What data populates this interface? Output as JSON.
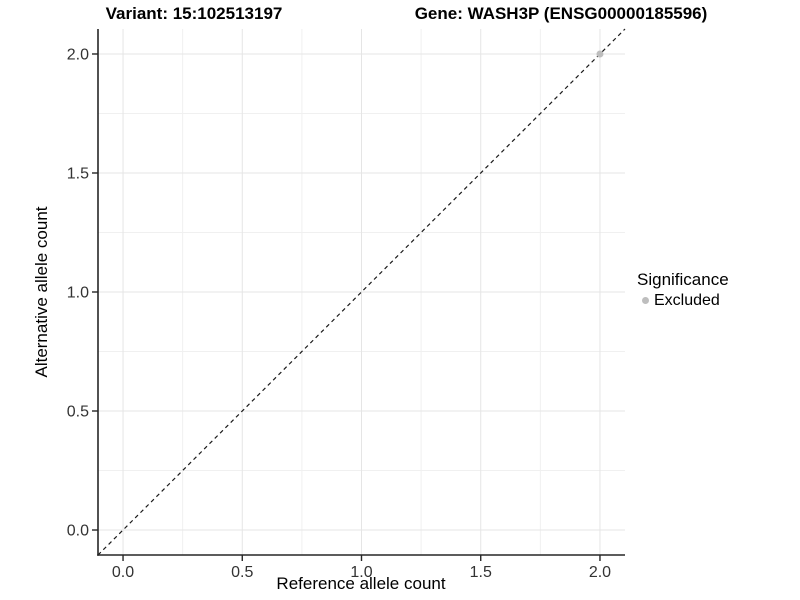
{
  "header": {
    "title_left": "Variant: 15:102513197",
    "title_right": "Gene: WASH3P (ENSG00000185596)"
  },
  "chart_data": {
    "type": "scatter",
    "xlabel": "Reference allele count",
    "ylabel": "Alternative allele count",
    "xlim": [
      -0.105,
      2.105
    ],
    "ylim": [
      -0.105,
      2.105
    ],
    "x_ticks": [
      0.0,
      0.5,
      1.0,
      1.5,
      2.0
    ],
    "x_tick_labels": [
      "0.0",
      "0.5",
      "1.0",
      "1.5",
      "2.0"
    ],
    "y_ticks": [
      0.0,
      0.5,
      1.0,
      1.5,
      2.0
    ],
    "y_tick_labels": [
      "0.0",
      "0.5",
      "1.0",
      "1.5",
      "2.0"
    ],
    "minor_ticks": [
      0.25,
      0.75,
      1.25,
      1.75
    ],
    "grid": true,
    "series": [
      {
        "name": "Excluded",
        "color": "#bebebe",
        "points": [
          {
            "x": 2.0,
            "y": 2.0
          }
        ]
      }
    ],
    "reference_line": {
      "type": "identity",
      "style": "dashed",
      "from": {
        "x": -0.105,
        "y": -0.105
      },
      "to": {
        "x": 2.105,
        "y": 2.105
      },
      "color": "#1a1a1a"
    },
    "legend": {
      "title": "Significance",
      "position": "right",
      "items": [
        {
          "label": "Excluded",
          "color": "#bebebe"
        }
      ]
    },
    "colors": {
      "background": "#ffffff",
      "grid_major": "#e5e5e5",
      "grid_minor": "#f0f0f0",
      "axis_line": "#262626",
      "tick_mark": "#262626",
      "tick_label": "#333333",
      "point": "#bebebe",
      "identity_line": "#1a1a1a"
    }
  }
}
